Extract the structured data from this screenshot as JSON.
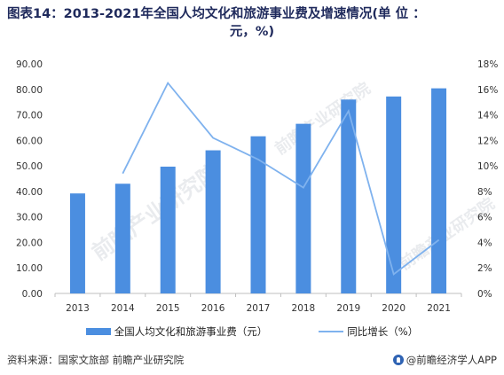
{
  "title": {
    "line1": "图表14：2013-2021年全国人均文化和旅游事业费及增速情况(单 位 ：",
    "line2": "元，%)"
  },
  "footer": {
    "source": "资料来源：国家文旅部 前瞻产业研究院",
    "brand": "@前瞻经济学人APP"
  },
  "watermark": {
    "text": "前瞻产业研究院"
  },
  "colors": {
    "bar": "#4b8ee0",
    "line": "#7fb2ee",
    "axis": "#bfbfbf",
    "text": "#333333"
  },
  "chart_data": {
    "type": "bar",
    "categories": [
      "2013",
      "2014",
      "2015",
      "2016",
      "2017",
      "2018",
      "2019",
      "2020",
      "2021"
    ],
    "series": [
      {
        "name": "全国人均文化和旅游事业费（元）",
        "type": "bar",
        "axis": "left",
        "values": [
          39.2,
          43.0,
          49.7,
          56.1,
          61.6,
          66.5,
          76.0,
          77.2,
          80.4
        ]
      },
      {
        "name": "同比增长（%）",
        "type": "line",
        "axis": "right",
        "values": [
          null,
          9.4,
          16.5,
          12.2,
          10.5,
          8.3,
          14.3,
          1.5,
          4.2
        ]
      }
    ],
    "y_left": {
      "ylim": [
        0,
        90
      ],
      "ticks": [
        "0.00",
        "10.00",
        "20.00",
        "30.00",
        "40.00",
        "50.00",
        "60.00",
        "70.00",
        "80.00",
        "90.00"
      ]
    },
    "y_right": {
      "ylim": [
        0,
        18
      ],
      "ticks": [
        "0%",
        "2%",
        "4%",
        "6%",
        "8%",
        "10%",
        "12%",
        "14%",
        "16%",
        "18%"
      ]
    },
    "grid": false,
    "legend_position": "bottom"
  }
}
